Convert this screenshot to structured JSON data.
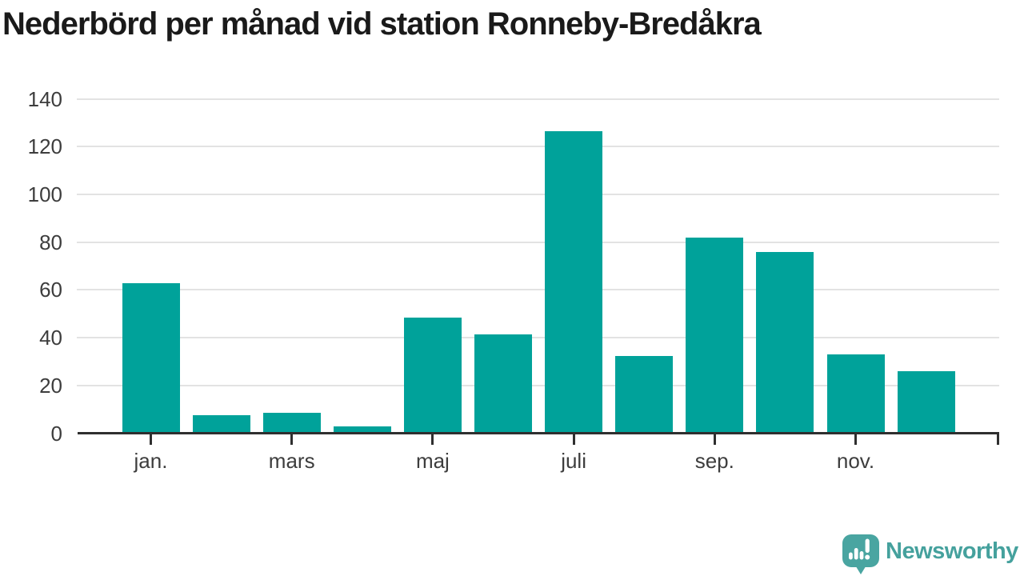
{
  "title": "Nederbörd per månad vid station Ronneby-Bredåkra",
  "branding": {
    "logo_text": "Newsworthy",
    "logo_icon": "newsworthy-speech-bubble-bar-chart-icon"
  },
  "colors": {
    "bar": "#00a29a",
    "grid": "#e3e3e3",
    "axis": "#2f2f2f",
    "tick_label": "#3d3d3d",
    "title": "#1a1a1a",
    "logo": "#49a5a1",
    "background": "#ffffff"
  },
  "chart_data": {
    "type": "bar",
    "title": "Nederbörd per månad vid station Ronneby-Bredåkra",
    "n_bars": 12,
    "values": [
      63,
      7.5,
      8.5,
      3,
      48.5,
      41.5,
      126.5,
      32.5,
      82,
      76,
      33,
      26
    ],
    "x_ticks": [
      {
        "index": 0,
        "label": "jan."
      },
      {
        "index": 2,
        "label": "mars"
      },
      {
        "index": 4,
        "label": "maj"
      },
      {
        "index": 6,
        "label": "juli"
      },
      {
        "index": 8,
        "label": "sep."
      },
      {
        "index": 10,
        "label": "nov."
      }
    ],
    "y_ticks": [
      0,
      20,
      40,
      60,
      80,
      100,
      120,
      140
    ],
    "ylim": [
      0,
      145
    ],
    "xlabel": "",
    "ylabel": "",
    "grid": true,
    "legend": "none"
  }
}
